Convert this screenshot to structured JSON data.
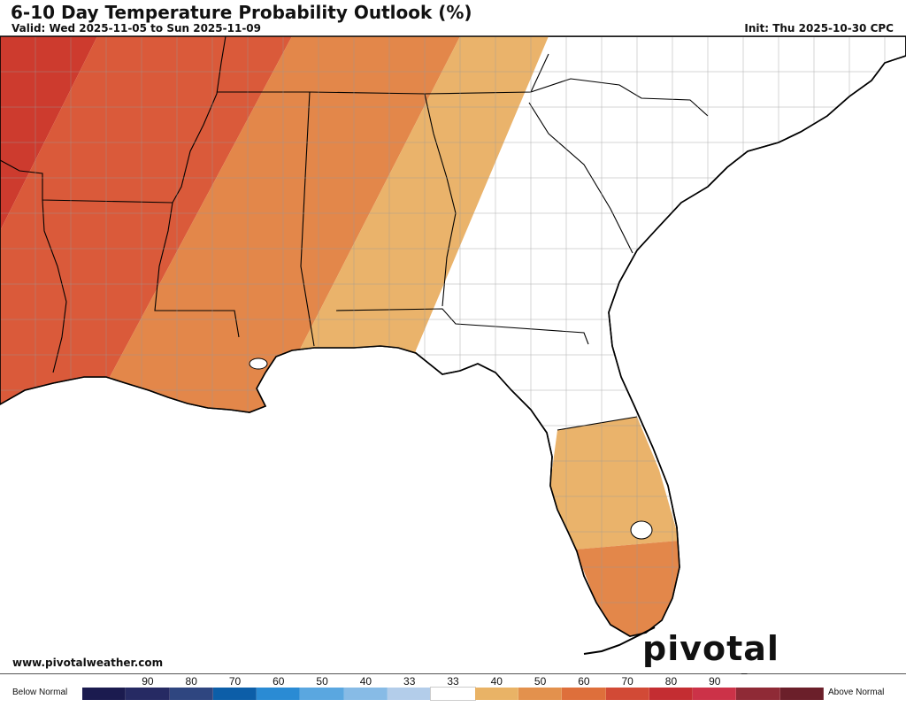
{
  "header": {
    "title": "6-10 Day Temperature Probability Outlook (%)",
    "valid": "Valid: Wed 2025-11-05 to Sun 2025-11-09",
    "init": "Init: Thu 2025-10-30 CPC"
  },
  "footer": {
    "website": "www.pivotalweather.com",
    "brand": "pivotal weather"
  },
  "legend": {
    "left_label": "Below Normal",
    "right_label": "Above Normal",
    "colors": [
      "#1b1b4f",
      "#262a63",
      "#2f4680",
      "#0c5ea8",
      "#2a8bd4",
      "#5aa7e0",
      "#87bbe6",
      "#b3cdea",
      "#ffffff",
      "#e9b366",
      "#e3914d",
      "#de6f3b",
      "#d24a36",
      "#c42d32",
      "#cc3248",
      "#8f2a36",
      "#6b1f2a"
    ],
    "ticks": [
      {
        "label": "90",
        "pos": 1
      },
      {
        "label": "80",
        "pos": 2
      },
      {
        "label": "70",
        "pos": 3
      },
      {
        "label": "60",
        "pos": 4
      },
      {
        "label": "50",
        "pos": 5
      },
      {
        "label": "40",
        "pos": 6
      },
      {
        "label": "33",
        "pos": 7
      },
      {
        "label": "33",
        "pos": 8
      },
      {
        "label": "40",
        "pos": 9
      },
      {
        "label": "50",
        "pos": 10
      },
      {
        "label": "60",
        "pos": 11
      },
      {
        "label": "70",
        "pos": 12
      },
      {
        "label": "80",
        "pos": 13
      },
      {
        "label": "90",
        "pos": 14
      }
    ]
  },
  "map": {
    "region": "Southeastern United States",
    "outlook_category": "Above Normal",
    "categories": [
      {
        "probability": "70",
        "color": "#cd3b2e"
      },
      {
        "probability": "60",
        "color": "#da5a3a"
      },
      {
        "probability": "50",
        "color": "#e3874a"
      },
      {
        "probability": "40",
        "color": "#eab36b"
      }
    ]
  }
}
